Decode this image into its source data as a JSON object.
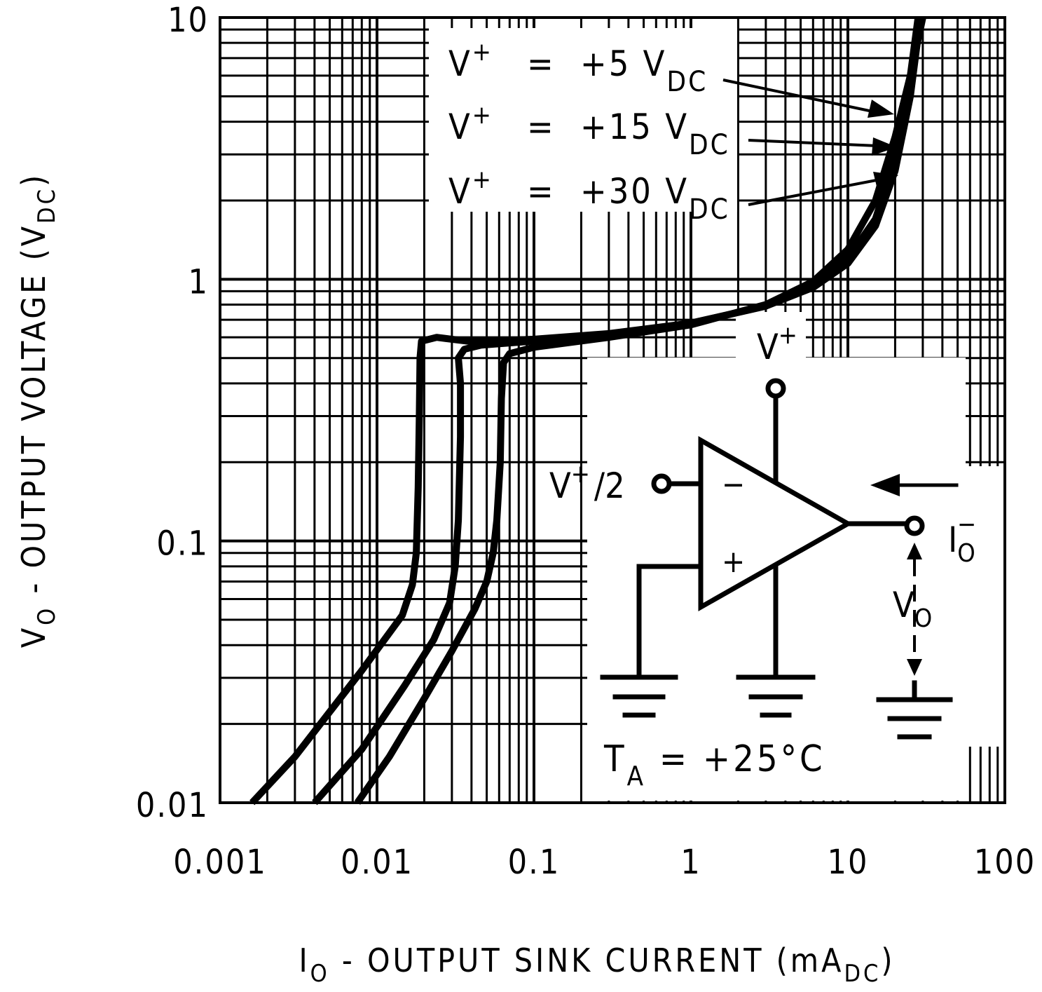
{
  "chart_data": {
    "type": "line",
    "scale": {
      "x": "log",
      "y": "log"
    },
    "grid": true,
    "xlim": [
      0.001,
      100
    ],
    "ylim": [
      0.01,
      10
    ],
    "xlabel": {
      "pre": "I",
      "sub": "O",
      "post": " - OUTPUT SINK CURRENT (mA",
      "sub2": "DC",
      "end": ")"
    },
    "ylabel": {
      "pre": "V",
      "sub": "O",
      "post": " - OUTPUT VOLTAGE (V",
      "sub2": "DC",
      "end": ")"
    },
    "x_ticks": [
      "0.001",
      "0.01",
      "0.1",
      "1",
      "10",
      "100"
    ],
    "y_ticks": [
      "0.01",
      "0.1",
      "1",
      "10"
    ],
    "series": [
      {
        "name": "V+ = +5 VDC",
        "points": [
          [
            0.0016,
            0.01
          ],
          [
            0.003,
            0.015
          ],
          [
            0.008,
            0.032
          ],
          [
            0.0145,
            0.052
          ],
          [
            0.0168,
            0.068
          ],
          [
            0.0178,
            0.09
          ],
          [
            0.0183,
            0.16
          ],
          [
            0.0186,
            0.3
          ],
          [
            0.0188,
            0.5
          ],
          [
            0.0192,
            0.58
          ],
          [
            0.024,
            0.6
          ],
          [
            0.03,
            0.59
          ],
          [
            0.038,
            0.58
          ],
          [
            0.05,
            0.58
          ],
          [
            0.1,
            0.59
          ],
          [
            0.3,
            0.62
          ],
          [
            1,
            0.68
          ],
          [
            3,
            0.79
          ],
          [
            6,
            0.93
          ],
          [
            10,
            1.15
          ],
          [
            15,
            1.6
          ],
          [
            20,
            2.6
          ],
          [
            25,
            5
          ],
          [
            29,
            10
          ]
        ]
      },
      {
        "name": "V+ = +15 VDC",
        "points": [
          [
            0.004,
            0.01
          ],
          [
            0.008,
            0.016
          ],
          [
            0.015,
            0.028
          ],
          [
            0.023,
            0.042
          ],
          [
            0.029,
            0.058
          ],
          [
            0.0315,
            0.08
          ],
          [
            0.033,
            0.12
          ],
          [
            0.034,
            0.25
          ],
          [
            0.034,
            0.4
          ],
          [
            0.033,
            0.5
          ],
          [
            0.036,
            0.54
          ],
          [
            0.046,
            0.56
          ],
          [
            0.08,
            0.575
          ],
          [
            0.2,
            0.6
          ],
          [
            0.5,
            0.63
          ],
          [
            1,
            0.68
          ],
          [
            3,
            0.79
          ],
          [
            6,
            0.95
          ],
          [
            10,
            1.2
          ],
          [
            15,
            1.7
          ],
          [
            20,
            2.9
          ],
          [
            24,
            5
          ],
          [
            28,
            10
          ]
        ]
      },
      {
        "name": "V+ = +30 VDC",
        "points": [
          [
            0.0075,
            0.01
          ],
          [
            0.012,
            0.015
          ],
          [
            0.02,
            0.025
          ],
          [
            0.03,
            0.038
          ],
          [
            0.042,
            0.055
          ],
          [
            0.05,
            0.07
          ],
          [
            0.055,
            0.09
          ],
          [
            0.058,
            0.12
          ],
          [
            0.061,
            0.2
          ],
          [
            0.062,
            0.35
          ],
          [
            0.064,
            0.48
          ],
          [
            0.07,
            0.52
          ],
          [
            0.1,
            0.55
          ],
          [
            0.3,
            0.6
          ],
          [
            1,
            0.67
          ],
          [
            3,
            0.8
          ],
          [
            6,
            0.98
          ],
          [
            10,
            1.3
          ],
          [
            15,
            2
          ],
          [
            20,
            3.5
          ],
          [
            25,
            6
          ],
          [
            30,
            10
          ]
        ]
      }
    ],
    "annotations": {
      "v5": {
        "v": "V",
        "sup": "+",
        "eq": "=",
        "val": "+5 V",
        "sub": "DC"
      },
      "v15": {
        "v": "V",
        "sup": "+",
        "eq": "=",
        "val": "+15 V",
        "sub": "DC"
      },
      "v30": {
        "v": "V",
        "sup": "+",
        "eq": "=",
        "val": "+30 V",
        "sub": "DC"
      }
    }
  },
  "schematic": {
    "supply": {
      "v": "V",
      "sup": "+"
    },
    "inverting_input": {
      "v": "V",
      "sup": "+",
      "post": "/2"
    },
    "minus_sign": "−",
    "plus_sign": "+",
    "current": {
      "i": "I",
      "sub": "O",
      "sup": "−"
    },
    "vout": {
      "v": "V",
      "sub": "O"
    },
    "temperature": {
      "t": "T",
      "sub": "A",
      "post": " = +25°C"
    }
  }
}
